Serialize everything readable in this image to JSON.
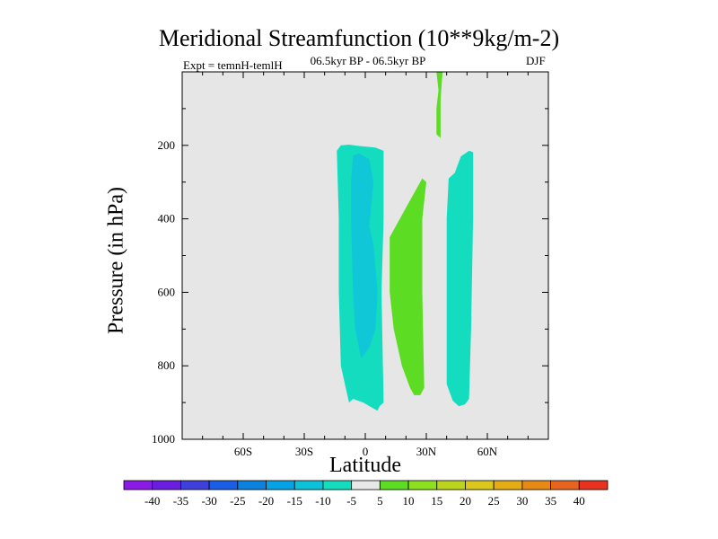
{
  "chart_data": {
    "type": "heatmap",
    "title": "Meridional Streamfunction (10**9kg/m-2)",
    "subtitle": "06.5kyr BP - 06.5kyr BP",
    "experiment": "Expt = temnH-temlH",
    "season": "DJF",
    "xlabel": "Latitude",
    "ylabel": "Pressure (in hPa)",
    "xlim": [
      -90,
      90
    ],
    "ylim": [
      1000,
      0
    ],
    "x_ticks": [
      {
        "value": -60,
        "label": "60S"
      },
      {
        "value": -30,
        "label": "30S"
      },
      {
        "value": 0,
        "label": "0"
      },
      {
        "value": 30,
        "label": "30N"
      },
      {
        "value": 60,
        "label": "60N"
      }
    ],
    "y_ticks": [
      {
        "value": 200,
        "label": "200"
      },
      {
        "value": 400,
        "label": "400"
      },
      {
        "value": 600,
        "label": "600"
      },
      {
        "value": 800,
        "label": "800"
      },
      {
        "value": 1000,
        "label": "1000"
      }
    ],
    "background_color": "#e6e6e6",
    "regions": [
      {
        "level": "-10 to -5",
        "color": "#14dcbe",
        "points": [
          [
            -12,
            200
          ],
          [
            -8,
            198
          ],
          [
            -4,
            201
          ],
          [
            5,
            206
          ],
          [
            9,
            215
          ],
          [
            9,
            400
          ],
          [
            8,
            600
          ],
          [
            9,
            900
          ],
          [
            7,
            910
          ],
          [
            6,
            922
          ],
          [
            3,
            913
          ],
          [
            -1,
            900
          ],
          [
            -6,
            890
          ],
          [
            -8,
            900
          ],
          [
            -10,
            850
          ],
          [
            -12,
            800
          ],
          [
            -13,
            600
          ],
          [
            -13,
            400
          ],
          [
            -14,
            215
          ]
        ]
      },
      {
        "level": "-15 to -10",
        "color": "#0fc7d6",
        "points": [
          [
            -6,
            228
          ],
          [
            -3,
            222
          ],
          [
            2,
            238
          ],
          [
            4,
            300
          ],
          [
            2,
            420
          ],
          [
            4,
            470
          ],
          [
            6,
            600
          ],
          [
            5,
            700
          ],
          [
            2,
            750
          ],
          [
            -2,
            780
          ],
          [
            -5,
            700
          ],
          [
            -6,
            600
          ],
          [
            -7,
            400
          ],
          [
            -7,
            300
          ]
        ]
      },
      {
        "level": "5 to 10",
        "color": "#5cdc23",
        "points": [
          [
            12,
            450
          ],
          [
            20,
            370
          ],
          [
            28,
            290
          ],
          [
            30,
            300
          ],
          [
            28,
            400
          ],
          [
            28,
            600
          ],
          [
            29,
            860
          ],
          [
            27,
            880
          ],
          [
            24,
            880
          ],
          [
            22,
            860
          ],
          [
            18,
            800
          ],
          [
            14,
            700
          ],
          [
            12,
            600
          ]
        ]
      },
      {
        "level": "5 to 10",
        "color": "#5cdc23",
        "points": [
          [
            35,
            0
          ],
          [
            38,
            0
          ],
          [
            37,
            75
          ],
          [
            37,
            140
          ],
          [
            37,
            180
          ],
          [
            35,
            170
          ],
          [
            35,
            100
          ],
          [
            36,
            50
          ]
        ]
      },
      {
        "level": "-10 to -5",
        "color": "#14dcbe",
        "points": [
          [
            47,
            230
          ],
          [
            51,
            215
          ],
          [
            53,
            218
          ],
          [
            53,
            400
          ],
          [
            52,
            700
          ],
          [
            51,
            890
          ],
          [
            49,
            905
          ],
          [
            46,
            910
          ],
          [
            43,
            895
          ],
          [
            40,
            850
          ],
          [
            40,
            600
          ],
          [
            40,
            400
          ],
          [
            41,
            290
          ],
          [
            44,
            275
          ]
        ]
      }
    ],
    "colorbar": {
      "labels": [
        "-40",
        "-35",
        "-30",
        "-25",
        "-20",
        "-15",
        "-10",
        "-5",
        "5",
        "10",
        "15",
        "20",
        "25",
        "30",
        "35",
        "40"
      ],
      "colors": [
        "#8c1ae6",
        "#6a1fe0",
        "#3f3fdc",
        "#1a5ee6",
        "#0c82e0",
        "#06a2e6",
        "#0bc2d8",
        "#14dcbe",
        "#e8e8e8",
        "#5cdc23",
        "#8ce01e",
        "#bcd41e",
        "#dcc81c",
        "#e6ac14",
        "#e68a14",
        "#e6641e",
        "#e6321e"
      ]
    }
  }
}
